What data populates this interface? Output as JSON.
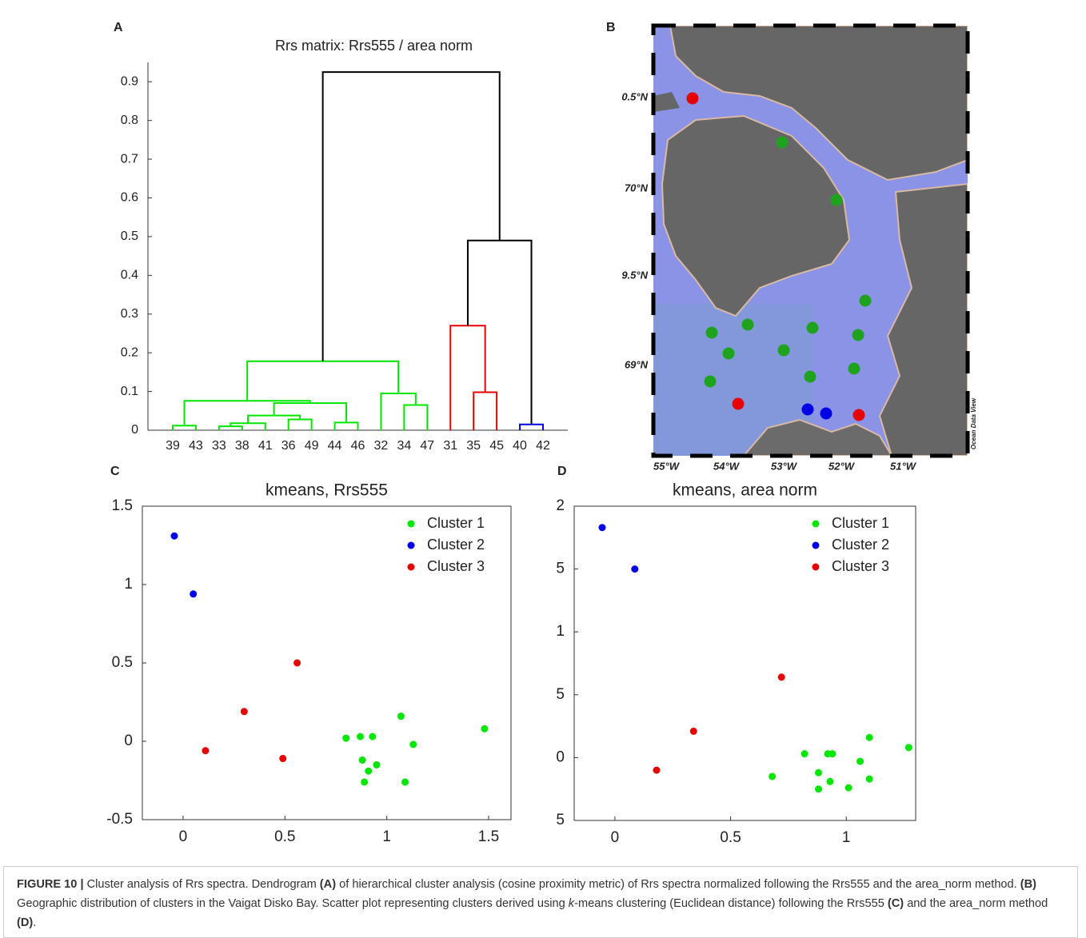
{
  "panel_labels": [
    "A",
    "B",
    "C",
    "D"
  ],
  "chart_data": [
    {
      "type": "dendrogram",
      "title": "Rrs matrix: Rrs555 / area norm",
      "leaves": [
        "39",
        "43",
        "33",
        "38",
        "41",
        "36",
        "49",
        "44",
        "46",
        "32",
        "34",
        "47",
        "31",
        "35",
        "45",
        "40",
        "42"
      ],
      "merges": [
        {
          "children": [
            0,
            1
          ],
          "height": 0.012,
          "color": "#00e600"
        },
        {
          "children": [
            2,
            3
          ],
          "height": 0.01,
          "color": "#00e600"
        },
        {
          "children": [
            18,
            4
          ],
          "height": 0.018,
          "color": "#00e600"
        },
        {
          "children": [
            5,
            6
          ],
          "height": 0.028,
          "color": "#00e600"
        },
        {
          "children": [
            19,
            20
          ],
          "height": 0.038,
          "color": "#00e600"
        },
        {
          "children": [
            7,
            8
          ],
          "height": 0.02,
          "color": "#00e600"
        },
        {
          "children": [
            21,
            22
          ],
          "height": 0.07,
          "color": "#00e600"
        },
        {
          "children": [
            17,
            23
          ],
          "height": 0.076,
          "color": "#00e600"
        },
        {
          "children": [
            10,
            11
          ],
          "height": 0.065,
          "color": "#00e600"
        },
        {
          "children": [
            9,
            25
          ],
          "height": 0.095,
          "color": "#00e600"
        },
        {
          "children": [
            24,
            26
          ],
          "height": 0.178,
          "color": "#00e600"
        },
        {
          "children": [
            13,
            14
          ],
          "height": 0.098,
          "color": "#e60000"
        },
        {
          "children": [
            12,
            28
          ],
          "height": 0.27,
          "color": "#e60000"
        },
        {
          "children": [
            15,
            16
          ],
          "height": 0.015,
          "color": "#0000e6"
        },
        {
          "children": [
            29,
            30
          ],
          "height": 0.49,
          "color": "#000000"
        },
        {
          "children": [
            27,
            31
          ],
          "height": 0.925,
          "color": "#000000"
        }
      ],
      "ylim": [
        0,
        0.95
      ],
      "yticks": [
        0,
        0.1,
        0.2,
        0.3,
        0.4,
        0.5,
        0.6,
        0.7,
        0.8,
        0.9
      ]
    },
    {
      "type": "scatter",
      "title": "kmeans, Rrs555",
      "legend": "upper right",
      "xlim": [
        -0.2,
        1.61
      ],
      "xticks": [
        0,
        0.5,
        1,
        1.5
      ],
      "ylim": [
        -0.5,
        1.5
      ],
      "yticks": [
        -0.5,
        0,
        0.5,
        1,
        1.5
      ],
      "series": [
        {
          "name": "Cluster 1",
          "color": "#00e600",
          "x": [
            0.8,
            0.87,
            0.93,
            0.88,
            0.91,
            0.95,
            0.89,
            1.07,
            1.13,
            1.09,
            1.48
          ],
          "y": [
            0.02,
            0.03,
            0.03,
            -0.12,
            -0.19,
            -0.15,
            -0.26,
            0.16,
            -0.02,
            -0.26,
            0.08
          ]
        },
        {
          "name": "Cluster 2",
          "color": "#0000e6",
          "x": [
            -0.043,
            0.05
          ],
          "y": [
            1.31,
            0.94
          ]
        },
        {
          "name": "Cluster 3",
          "color": "#e60000",
          "x": [
            0.11,
            0.3,
            0.49,
            0.56
          ],
          "y": [
            -0.06,
            0.19,
            -0.11,
            0.5
          ]
        }
      ]
    },
    {
      "type": "scatter",
      "title": "kmeans, area norm",
      "legend": "upper right",
      "xlim": [
        -0.176,
        1.3
      ],
      "xticks": [
        0,
        0.5,
        1
      ],
      "ylim": [
        -0.5,
        2
      ],
      "yticks": [
        {
          "value": -0.5,
          "label": "5"
        },
        0,
        {
          "value": 0.5,
          "label": "5"
        },
        1,
        {
          "value": 1.5,
          "label": "5"
        },
        2
      ],
      "series": [
        {
          "name": "Cluster 1",
          "color": "#00e600",
          "x": [
            0.68,
            0.82,
            0.92,
            0.94,
            0.88,
            0.93,
            0.88,
            1.01,
            1.06,
            1.1,
            1.1,
            1.27
          ],
          "y": [
            -0.15,
            0.03,
            0.03,
            0.03,
            -0.12,
            -0.19,
            -0.25,
            -0.24,
            -0.03,
            0.16,
            -0.17,
            0.08
          ]
        },
        {
          "name": "Cluster 2",
          "color": "#0000e6",
          "x": [
            -0.055,
            0.086
          ],
          "y": [
            1.83,
            1.5
          ]
        },
        {
          "name": "Cluster 3",
          "color": "#e60000",
          "x": [
            0.18,
            0.34,
            0.72
          ],
          "y": [
            -0.1,
            0.21,
            0.64
          ]
        }
      ]
    }
  ],
  "map": {
    "lat_labels": [
      "0.5°N",
      "70°N",
      "9.5°N",
      "69°N"
    ],
    "lon_labels": [
      "55°W",
      "54°W",
      "53°W",
      "52°W",
      "51°W"
    ],
    "credit": "Ocean Data View"
  },
  "caption": {
    "label": "FIGURE 10 |",
    "parts": [
      " Cluster analysis of Rrs spectra. Dendrogram ",
      "(A)",
      " of hierarchical cluster analysis (cosine proximity metric) of Rrs spectra normalized following the Rrs555 and the area_norm method. ",
      "(B)",
      " Geographic distribution of clusters in the Vaigat Disko Bay. Scatter plot representing clusters derived using ",
      "k",
      "-means clustering (Euclidean distance) following the Rrs555 ",
      "(C)",
      " and the area_norm method ",
      "(D)",
      "."
    ]
  }
}
